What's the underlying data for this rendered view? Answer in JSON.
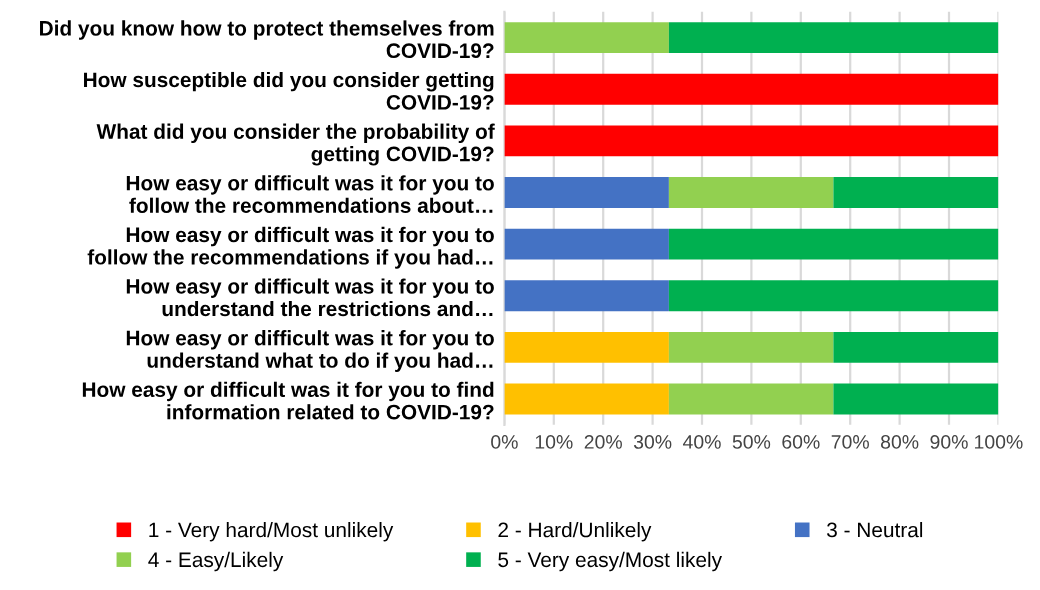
{
  "chart_data": {
    "type": "bar",
    "orientation": "horizontal",
    "stacked": true,
    "grid": "x",
    "legend": "bottom",
    "categories": [
      "Did you know how to protect themselves from\nCOVID-19?",
      "How susceptible did you consider getting\nCOVID-19?",
      "What did you consider the probability of\ngetting COVID-19?",
      "How easy or difficult was it for you to\nfollow the recommendations about…",
      "How easy or difficult was it for you to\nfollow the recommendations if you had…",
      "How easy or difficult was it for you to\nunderstand the restrictions and…",
      "How easy or difficult was it for you to\nunderstand what to do if you had…",
      "How easy or difficult was it for you to find\ninformation related to COVID-19?"
    ],
    "xlim": [
      0,
      100
    ],
    "xticks": [
      {
        "value": 0,
        "label": "0%"
      },
      {
        "value": 10,
        "label": "10%"
      },
      {
        "value": 20,
        "label": "20%"
      },
      {
        "value": 30,
        "label": "30%"
      },
      {
        "value": 40,
        "label": "40%"
      },
      {
        "value": 50,
        "label": "50%"
      },
      {
        "value": 60,
        "label": "60%"
      },
      {
        "value": 70,
        "label": "70%"
      },
      {
        "value": 80,
        "label": "80%"
      },
      {
        "value": 90,
        "label": "90%"
      },
      {
        "value": 100,
        "label": "100%"
      }
    ],
    "series": [
      {
        "name": "1 - Very hard/Most unlikely",
        "color": "#ff0000",
        "values": [
          0,
          100,
          100,
          0,
          0,
          0,
          0,
          0
        ]
      },
      {
        "name": "2 - Hard/Unlikely",
        "color": "#ffc000",
        "values": [
          0,
          0,
          0,
          0,
          0,
          0,
          33.3,
          33.3
        ]
      },
      {
        "name": "3 - Neutral",
        "color": "#4472c4",
        "values": [
          0,
          0,
          0,
          33.3,
          33.3,
          33.3,
          0,
          0
        ]
      },
      {
        "name": "4 - Easy/Likely",
        "color": "#92d050",
        "values": [
          33.3,
          0,
          0,
          33.3,
          0,
          0,
          33.3,
          33.3
        ]
      },
      {
        "name": "5 - Very easy/Most likely",
        "color": "#00b050",
        "values": [
          66.7,
          0,
          0,
          33.4,
          66.7,
          66.7,
          33.4,
          33.4
        ]
      }
    ]
  }
}
